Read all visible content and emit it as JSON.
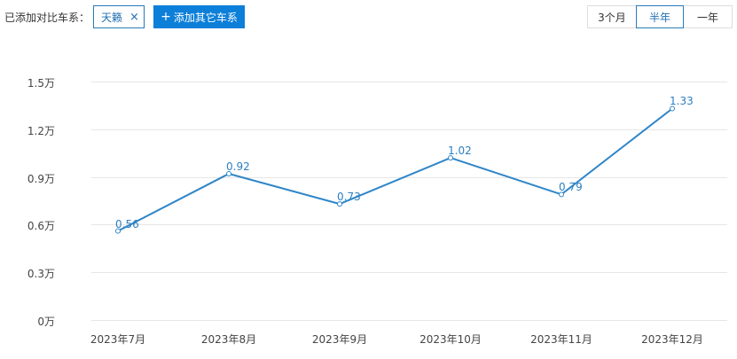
{
  "toolbar": {
    "added_label": "已添加对比车系：",
    "tag": {
      "label": "天籁",
      "close_icon": "×"
    },
    "add_button": {
      "icon": "+",
      "label": "添加其它车系"
    },
    "range_options": [
      {
        "label": "3个月",
        "active": false
      },
      {
        "label": "半年",
        "active": true
      },
      {
        "label": "一年",
        "active": false
      }
    ]
  },
  "colors": {
    "accent": "#0c7fd9",
    "line": "#2f86c8",
    "tag_border": "#2a7ab8",
    "grid": "#e6e6e6"
  },
  "chart_data": {
    "type": "line",
    "title": "",
    "xlabel": "",
    "ylabel": "",
    "categories": [
      "2023年7月",
      "2023年8月",
      "2023年9月",
      "2023年10月",
      "2023年11月",
      "2023年12月"
    ],
    "series": [
      {
        "name": "天籁",
        "values": [
          0.56,
          0.92,
          0.73,
          1.02,
          0.79,
          1.33
        ],
        "unit": "万"
      }
    ],
    "yticks": [
      "0万",
      "0.3万",
      "0.6万",
      "0.9万",
      "1.2万",
      "1.5万"
    ],
    "ylim": [
      0,
      1.5
    ],
    "grid": true,
    "legend": "none",
    "data_labels": [
      "0.56",
      "0.92",
      "0.73",
      "1.02",
      "0.79",
      "1.33"
    ]
  }
}
